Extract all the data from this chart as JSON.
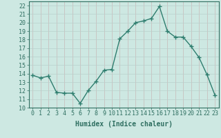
{
  "x": [
    0,
    1,
    2,
    3,
    4,
    5,
    6,
    7,
    8,
    9,
    10,
    11,
    12,
    13,
    14,
    15,
    16,
    17,
    18,
    19,
    20,
    21,
    22,
    23
  ],
  "y": [
    13.8,
    13.5,
    13.7,
    11.8,
    11.7,
    11.7,
    10.5,
    12.0,
    13.1,
    14.4,
    14.5,
    18.1,
    19.0,
    20.0,
    20.2,
    20.5,
    21.9,
    19.0,
    18.3,
    18.3,
    17.2,
    15.9,
    13.9,
    11.5
  ],
  "line_color": "#2e7d6e",
  "marker": "+",
  "marker_size": 4,
  "linewidth": 1.0,
  "bg_color": "#cde8e2",
  "grid_color_v": "#c8b8b8",
  "grid_color_h": "#b8d0cc",
  "xlabel": "Humidex (Indice chaleur)",
  "xlim": [
    -0.5,
    23.5
  ],
  "ylim": [
    10,
    22.5
  ],
  "yticks": [
    10,
    11,
    12,
    13,
    14,
    15,
    16,
    17,
    18,
    19,
    20,
    21,
    22
  ],
  "xticks": [
    0,
    1,
    2,
    3,
    4,
    5,
    6,
    7,
    8,
    9,
    10,
    11,
    12,
    13,
    14,
    15,
    16,
    17,
    18,
    19,
    20,
    21,
    22,
    23
  ],
  "tick_color": "#2e6e60",
  "axis_color": "#2e6e60",
  "label_fontsize": 7,
  "tick_fontsize": 6
}
